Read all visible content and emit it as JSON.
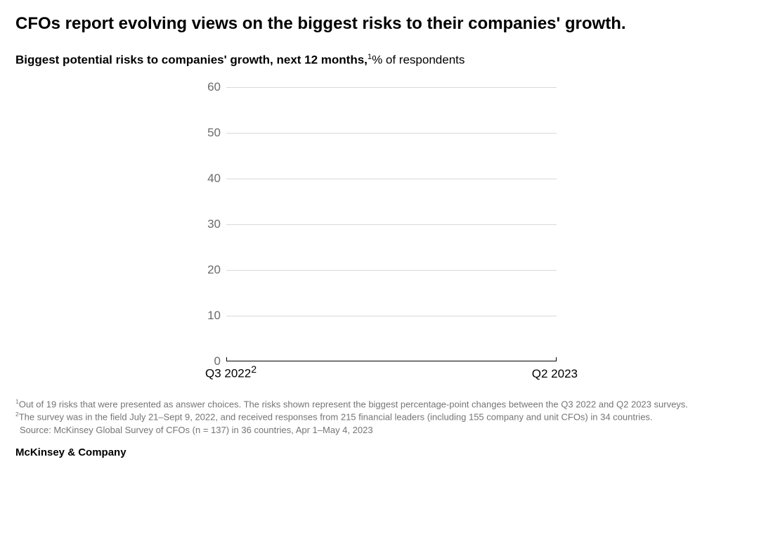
{
  "title": "CFOs report evolving views on the biggest risks to their companies' growth.",
  "subtitle": {
    "bold_part": "Biggest potential risks to companies' growth, next 12 months,",
    "sup1": "1",
    "rest": "% of respondents"
  },
  "chart": {
    "type": "line",
    "background_color": "#ffffff",
    "grid_color": "#d9d9d9",
    "axis_color": "#000000",
    "ytick_color": "#6b6b6b",
    "ylim": [
      0,
      60
    ],
    "ytick_step": 10,
    "yticks": [
      0,
      10,
      20,
      30,
      40,
      50,
      60
    ],
    "ytick_fontsize": 17,
    "x_categories": [
      "Q3 2022",
      "Q2 2023"
    ],
    "x_sup_on_first": "2",
    "xtick_fontsize": 17,
    "series": []
  },
  "footnotes": {
    "note1_sup": "1",
    "note1": "Out of 19 risks that were presented as answer choices. The risks shown represent the biggest percentage-point changes between the Q3 2022 and Q2 2023 surveys.",
    "note2_sup": "2",
    "note2": "The survey was in the field July 21–Sept 9, 2022, and received responses from 215 financial leaders (including 155 company and unit CFOs) in 34 countries.",
    "source": "Source: McKinsey Global Survey of CFOs (n = 137) in 36 countries, Apr 1–May 4, 2023"
  },
  "attribution": "McKinsey & Company"
}
